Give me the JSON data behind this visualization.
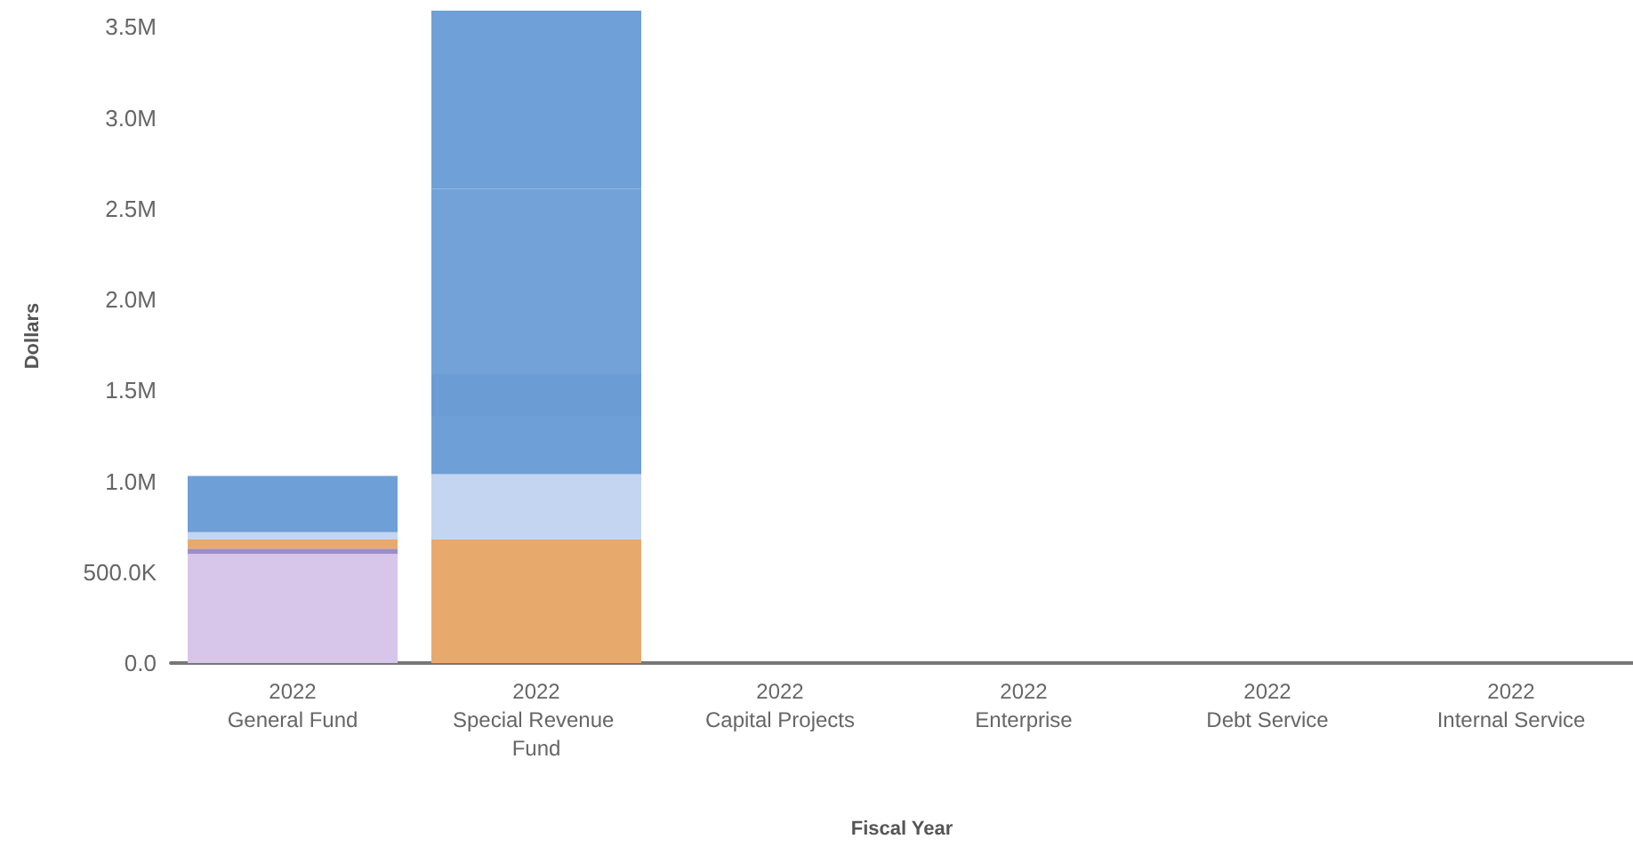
{
  "chart_data": {
    "type": "bar",
    "stacked": true,
    "xlabel": "Fiscal Year",
    "ylabel": "Dollars",
    "categories": [
      "2022\nGeneral Fund",
      "2022\nSpecial Revenue Fund",
      "2022\nCapital Projects",
      "2022\nEnterprise",
      "2022\nDebt Service",
      "2022\nInternal Service"
    ],
    "series": [
      {
        "color": "#d7c6ea",
        "values": [
          600000,
          null,
          null,
          null,
          null,
          null
        ]
      },
      {
        "color": "#9d8cc8",
        "values": [
          30000,
          null,
          null,
          null,
          null,
          null
        ]
      },
      {
        "color": "#e8aa6c",
        "values": [
          50000,
          680000,
          null,
          null,
          null,
          null
        ]
      },
      {
        "color": "#c3d5f1",
        "values": [
          40000,
          360000,
          null,
          null,
          null,
          null
        ]
      },
      {
        "color": "#6e9fd6",
        "values": [
          310000,
          320000,
          null,
          null,
          null,
          null
        ]
      },
      {
        "color": "#6b9cd4",
        "values": [
          null,
          230000,
          null,
          null,
          null,
          null
        ]
      },
      {
        "color": "#72a2d8",
        "values": [
          null,
          1020000,
          null,
          null,
          null,
          null
        ]
      },
      {
        "color": "#6fa0d7",
        "values": [
          null,
          980000,
          null,
          null,
          null,
          null
        ]
      }
    ],
    "ylim": [
      0,
      3600000
    ],
    "yticks": [
      {
        "value": 0,
        "label": "0.0"
      },
      {
        "value": 500000,
        "label": "500.0K"
      },
      {
        "value": 1000000,
        "label": "1.0M"
      },
      {
        "value": 1500000,
        "label": "1.5M"
      },
      {
        "value": 2000000,
        "label": "2.0M"
      },
      {
        "value": 2500000,
        "label": "2.5M"
      },
      {
        "value": 3000000,
        "label": "3.0M"
      },
      {
        "value": 3500000,
        "label": "3.5M"
      }
    ],
    "grid": false
  }
}
